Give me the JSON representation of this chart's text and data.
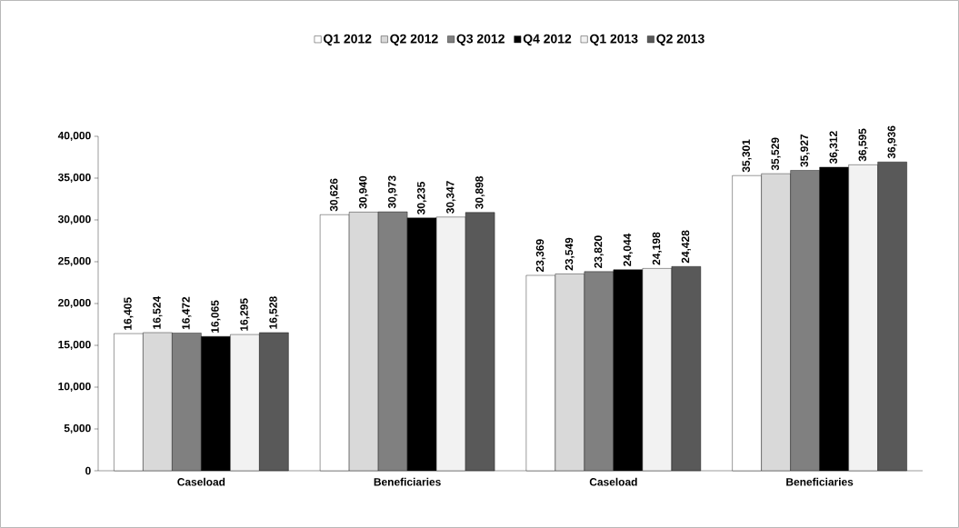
{
  "chart_data": {
    "type": "bar",
    "categories": [
      "Caseload",
      "Beneficiaries",
      "Caseload",
      "Beneficiaries"
    ],
    "series": [
      {
        "name": "Q1 2012",
        "color": "#ffffff",
        "values": [
          16405,
          30626,
          23369,
          35301
        ],
        "value_labels": [
          "16,405",
          "30,626",
          "23,369",
          "35,301"
        ]
      },
      {
        "name": "Q2 2012",
        "color": "#d9d9d9",
        "values": [
          16524,
          30940,
          23549,
          35529
        ],
        "value_labels": [
          "16,524",
          "30,940",
          "23,549",
          "35,529"
        ]
      },
      {
        "name": "Q3 2012",
        "color": "#808080",
        "values": [
          16472,
          30973,
          23820,
          35927
        ],
        "value_labels": [
          "16,472",
          "30,973",
          "23,820",
          "35,927"
        ]
      },
      {
        "name": "Q4 2012",
        "color": "#000000",
        "values": [
          16065,
          30235,
          24044,
          36312
        ],
        "value_labels": [
          "16,065",
          "30,235",
          "24,044",
          "36,312"
        ]
      },
      {
        "name": "Q1 2013",
        "color": "#f2f2f2",
        "values": [
          16295,
          30347,
          24198,
          36595
        ],
        "value_labels": [
          "16,295",
          "30,347",
          "24,198",
          "36,595"
        ]
      },
      {
        "name": "Q2 2013",
        "color": "#595959",
        "values": [
          16528,
          30898,
          24428,
          36936
        ],
        "value_labels": [
          "16,528",
          "30,898",
          "24,428",
          "36,936"
        ]
      }
    ],
    "ylim": [
      0,
      40000
    ],
    "yticks": [
      0,
      {
        "value": 5000,
        "label": "5,000"
      },
      {
        "value": 10000,
        "label": "10,000"
      },
      {
        "value": 15000,
        "label": "15,000"
      },
      {
        "value": 20000,
        "label": "20,000"
      },
      {
        "value": 25000,
        "label": "25,000"
      },
      {
        "value": 30000,
        "label": "30,000"
      },
      {
        "value": 35000,
        "label": "35,000"
      },
      {
        "value": 40000,
        "label": "40,000"
      }
    ],
    "legend": "top",
    "grid": false
  }
}
